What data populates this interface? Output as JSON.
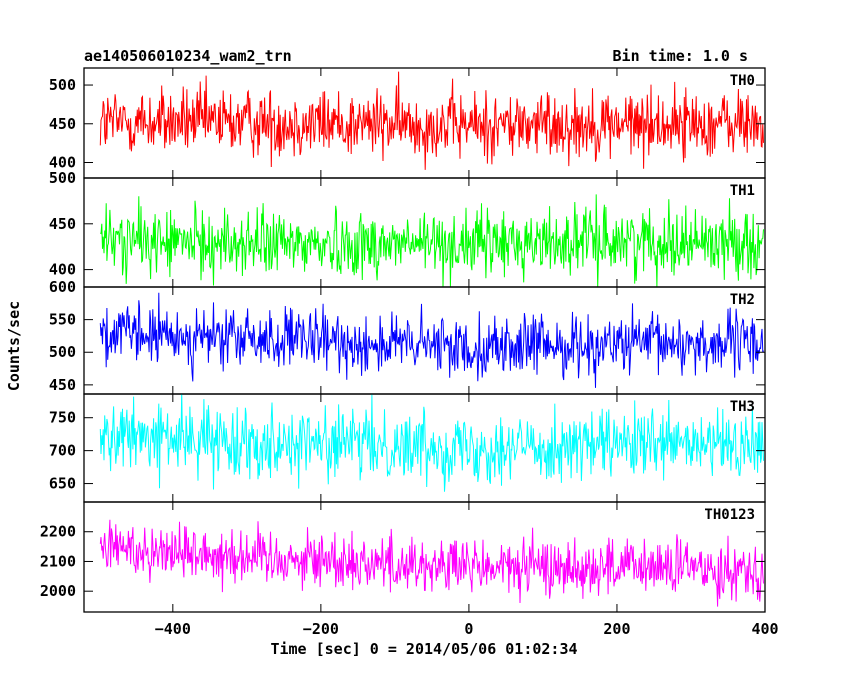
{
  "header": {
    "title": "ae140506010234_wam2_trn",
    "bin_time": "Bin time: 1.0 s"
  },
  "chart_data": {
    "type": "line",
    "xlabel": "Time [sec] 0 = 2014/05/06 01:02:34",
    "ylabel": "Counts/sec",
    "xlim": [
      -520,
      400
    ],
    "x_ticks": [
      -400,
      -200,
      0,
      200,
      400
    ],
    "x_tick_labels": [
      "−400",
      "−200",
      "0",
      "200",
      "400"
    ],
    "x_range": [
      -498,
      398
    ],
    "panels": [
      {
        "name": "TH0",
        "color": "#ff0000",
        "ylim": [
          380,
          522
        ],
        "yticks": [
          400,
          450,
          500
        ],
        "ytick_labels": [
          "400",
          "450",
          "500"
        ],
        "mean": 450,
        "noise": 22,
        "trend": [
          [
            -498,
            452
          ],
          [
            -300,
            452
          ],
          [
            0,
            448
          ],
          [
            200,
            450
          ],
          [
            398,
            450
          ]
        ]
      },
      {
        "name": "TH1",
        "color": "#00ff00",
        "ylim": [
          381,
          500
        ],
        "yticks": [
          400,
          450,
          500
        ],
        "ytick_labels": [
          "400",
          "450",
          "500"
        ],
        "mean": 430,
        "noise": 18,
        "trend": [
          [
            -498,
            432
          ],
          [
            -300,
            428
          ],
          [
            0,
            428
          ],
          [
            200,
            432
          ],
          [
            398,
            430
          ]
        ]
      },
      {
        "name": "TH2",
        "color": "#0000ff",
        "ylim": [
          436,
          600
        ],
        "yticks": [
          450,
          500,
          550,
          600
        ],
        "ytick_labels": [
          "450",
          "500",
          "550",
          "600"
        ],
        "mean": 515,
        "noise": 23,
        "trend": [
          [
            -498,
            528
          ],
          [
            -300,
            520
          ],
          [
            0,
            508
          ],
          [
            200,
            512
          ],
          [
            398,
            514
          ]
        ]
      },
      {
        "name": "TH3",
        "color": "#00ffff",
        "ylim": [
          622,
          786
        ],
        "yticks": [
          650,
          700,
          750
        ],
        "ytick_labels": [
          "650",
          "700",
          "750"
        ],
        "mean": 710,
        "noise": 26,
        "trend": [
          [
            -498,
            722
          ],
          [
            -300,
            715
          ],
          [
            0,
            705
          ],
          [
            200,
            708
          ],
          [
            398,
            706
          ]
        ]
      },
      {
        "name": "TH0123",
        "color": "#ff00ff",
        "ylim": [
          1930,
          2300
        ],
        "yticks": [
          2000,
          2100,
          2200
        ],
        "ytick_labels": [
          "2000",
          "2100",
          "2200"
        ],
        "mean": 2100,
        "noise": 48,
        "trend": [
          [
            -498,
            2150
          ],
          [
            -300,
            2120
          ],
          [
            0,
            2080
          ],
          [
            200,
            2080
          ],
          [
            398,
            2075
          ]
        ]
      }
    ]
  }
}
